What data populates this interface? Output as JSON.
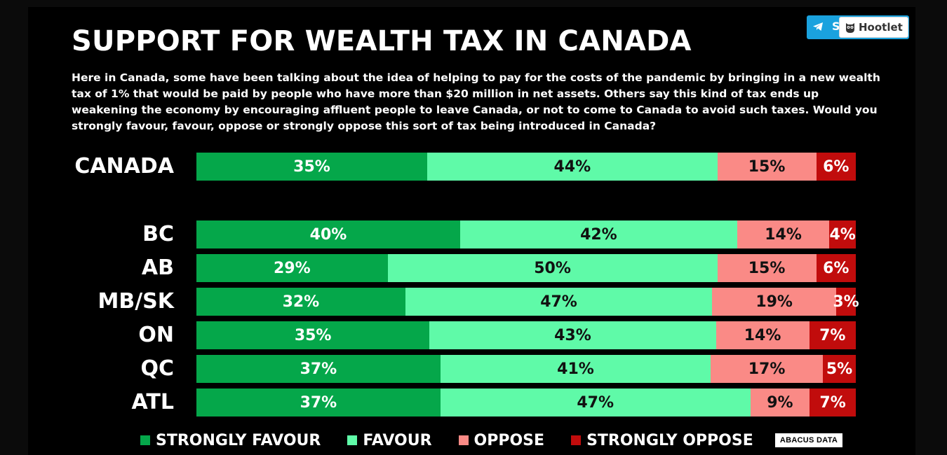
{
  "title": "SUPPORT FOR WEALTH TAX IN CANADA",
  "question": "Here in Canada, some have been talking about the idea of helping to pay for the costs of the pandemic by bringing in a new wealth tax of 1% that would be paid by people who have more than $20 million in net assets. Others say this kind of tax ends up weakening the economy by encouraging affluent people to leave Canada, or not to come to Canada to avoid such taxes. Would you strongly favour, favour, oppose or strongly oppose this sort of tax being introduced in Canada?",
  "share_button": {
    "label": "S",
    "icon": "telegram-icon"
  },
  "hootlet": {
    "label": "Hootlet",
    "icon": "owl-icon"
  },
  "logo": "ABACUS DATA",
  "colors": {
    "strongly_favour": "#05a74a",
    "favour": "#5ffaa8",
    "oppose": "#fa8a86",
    "strongly_oppose": "#c10c0c",
    "share": "#1aa2de"
  },
  "chart_data": {
    "type": "bar",
    "orientation": "horizontal",
    "stacked": true,
    "normalized": true,
    "categories": [
      "CANADA",
      "BC",
      "AB",
      "MB/SK",
      "ON",
      "QC",
      "ATL"
    ],
    "series": [
      {
        "name": "STRONGLY FAVOUR",
        "color": "#05a74a",
        "values": [
          35,
          40,
          29,
          32,
          35,
          37,
          37
        ]
      },
      {
        "name": "FAVOUR",
        "color": "#5ffaa8",
        "values": [
          44,
          42,
          50,
          47,
          43,
          41,
          47
        ]
      },
      {
        "name": "OPPOSE",
        "color": "#fa8a86",
        "values": [
          15,
          14,
          15,
          19,
          14,
          17,
          9
        ]
      },
      {
        "name": "STRONGLY OPPOSE",
        "color": "#c10c0c",
        "values": [
          6,
          4,
          6,
          3,
          7,
          5,
          7
        ]
      }
    ],
    "value_suffix": "%",
    "legend": "bottom",
    "grid": false
  }
}
